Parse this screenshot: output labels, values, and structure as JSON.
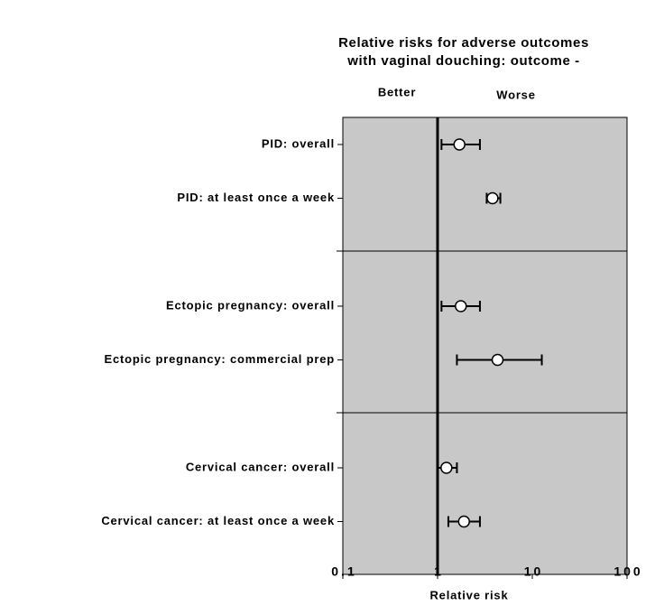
{
  "chart_data": {
    "type": "forest",
    "title": [
      "Relative risks for adverse outcomes",
      "with vaginal douching: outcome -"
    ],
    "side_labels": [
      "Better",
      "Worse"
    ],
    "x_label": "Relative risk",
    "categories": [
      "PID: overall",
      "PID: at least once a week",
      "Ectopic pregnancy: overall",
      "Ectopic pregnancy: commercial prep",
      "Cervical cancer: overall",
      "Cervical cancer: at least once a week"
    ],
    "values": [
      1.7,
      3.8,
      1.76,
      4.3,
      1.24,
      1.9
    ],
    "lower": [
      1.1,
      3.3,
      1.1,
      1.6,
      1.0,
      1.3
    ],
    "upper": [
      2.8,
      4.6,
      2.8,
      12.6,
      1.6,
      2.8
    ],
    "xlim": [
      0.1,
      100
    ],
    "xticks": [
      0.1,
      1,
      10,
      100
    ],
    "log_x": true,
    "reference_line": 1,
    "background": "#c8c8c8"
  }
}
